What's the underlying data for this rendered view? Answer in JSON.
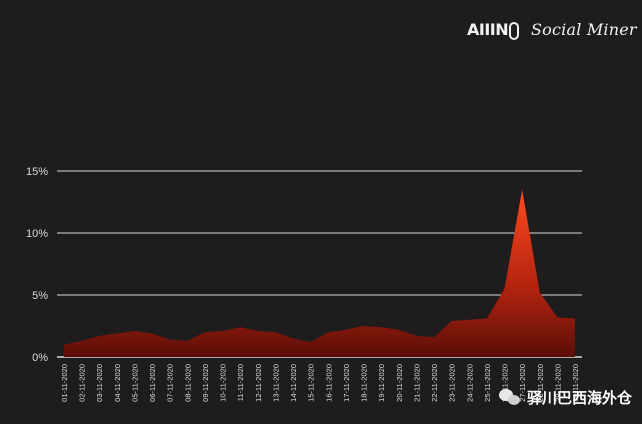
{
  "brand": {
    "allin": "AIIIN",
    "social_miner": "Social Miner"
  },
  "watermark": {
    "text": "驿川巴西海外仓",
    "icon": "wechat-icon"
  },
  "colors": {
    "background": "#1e1c1d",
    "area_top": "#ff4a1f",
    "area_bottom": "#5a0f08",
    "grid": "#d9d9d9",
    "text": "#dcdcdc"
  },
  "chart_data": {
    "type": "area",
    "title": "",
    "xlabel": "",
    "ylabel": "",
    "ylim": [
      0,
      15
    ],
    "y_ticks": [
      "0%",
      "5%",
      "10%",
      "15%"
    ],
    "grid": true,
    "legend": "none",
    "categories": [
      "01-11-2020",
      "02-11-2020",
      "03-11-2020",
      "04-11-2020",
      "05-11-2020",
      "06-11-2020",
      "07-11-2020",
      "08-11-2020",
      "09-11-2020",
      "10-11-2020",
      "11-11-2020",
      "12-11-2020",
      "13-11-2020",
      "14-11-2020",
      "15-11-2020",
      "16-11-2020",
      "17-11-2020",
      "18-11-2020",
      "19-11-2020",
      "20-11-2020",
      "21-11-2020",
      "22-11-2020",
      "23-11-2020",
      "24-11-2020",
      "25-11-2020",
      "26-11-2020",
      "27-11-2020",
      "28-11-2020",
      "29-11-2020",
      "30-11-2020"
    ],
    "values": [
      1.0,
      1.3,
      1.7,
      1.9,
      2.1,
      1.9,
      1.4,
      1.3,
      2.0,
      2.1,
      2.4,
      2.1,
      2.0,
      1.5,
      1.2,
      2.0,
      2.2,
      2.5,
      2.4,
      2.2,
      1.7,
      1.6,
      2.9,
      3.0,
      3.1,
      5.5,
      13.5,
      5.2,
      3.2,
      3.1
    ]
  }
}
